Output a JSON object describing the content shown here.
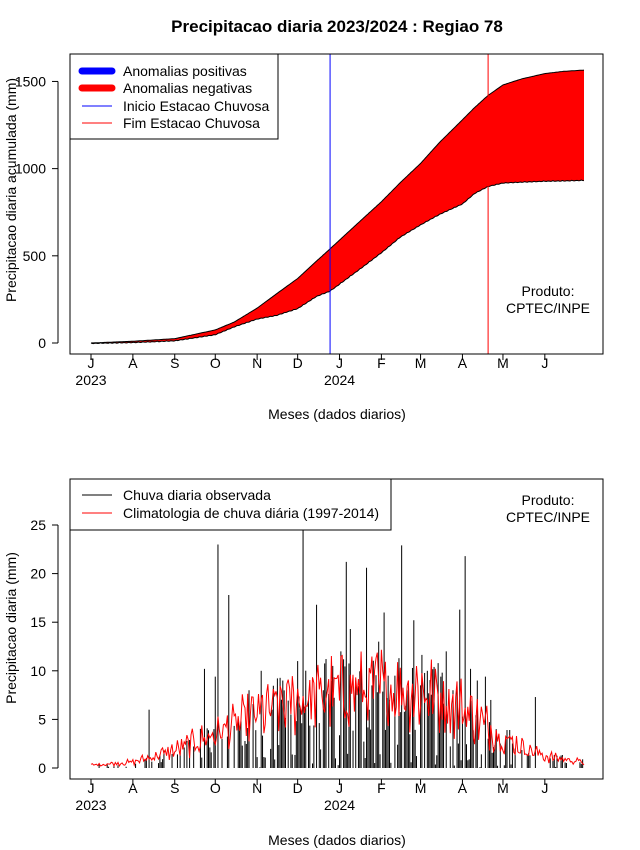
{
  "chart_data": [
    {
      "type": "area",
      "title": "Precipitacao diaria 2023/2024 : Regiao 78",
      "xlabel": "Meses (dados diarios)",
      "ylabel": "Precipitacao diaria acumulada (mm)",
      "ylim": [
        0,
        1600
      ],
      "yticks": [
        "0",
        "500",
        "1000",
        "1500"
      ],
      "month_ticks": [
        "J",
        "A",
        "S",
        "O",
        "N",
        "D",
        "J",
        "F",
        "M",
        "A",
        "M",
        "J"
      ],
      "year_labels": [
        "2023",
        "2024"
      ],
      "legend": {
        "placement": "top-left",
        "items": [
          "Anomalias positivas",
          "Anomalias negativas",
          "Inicio Estacao Chuvosa",
          "Fim Estacao Chuvosa"
        ]
      },
      "credit": [
        "Produto:",
        "CPTEC/INPE"
      ],
      "colors": {
        "positive": "#0000ff",
        "negative": "#ff0000",
        "start_line": "#0000ff",
        "end_line": "#ff0000"
      },
      "start_rainy_season": "2023-12-25",
      "end_rainy_season": "2024-04-20",
      "x": [
        "2023-07-01",
        "2023-08-01",
        "2023-09-01",
        "2023-10-01",
        "2023-10-15",
        "2023-11-01",
        "2023-11-15",
        "2023-12-01",
        "2023-12-15",
        "2023-12-25",
        "2024-01-01",
        "2024-01-15",
        "2024-02-01",
        "2024-02-15",
        "2024-03-01",
        "2024-03-15",
        "2024-04-01",
        "2024-04-10",
        "2024-04-20",
        "2024-05-01",
        "2024-05-15",
        "2024-06-01",
        "2024-06-15",
        "2024-06-30"
      ],
      "series": [
        {
          "name": "Climatologia",
          "values": [
            0,
            10,
            25,
            75,
            120,
            200,
            280,
            370,
            470,
            540,
            590,
            690,
            810,
            920,
            1030,
            1150,
            1280,
            1350,
            1420,
            1480,
            1515,
            1545,
            1558,
            1565
          ]
        },
        {
          "name": "Observada",
          "values": [
            0,
            5,
            15,
            50,
            95,
            140,
            160,
            200,
            270,
            300,
            340,
            420,
            520,
            610,
            680,
            740,
            800,
            860,
            900,
            920,
            925,
            930,
            932,
            935
          ]
        }
      ]
    },
    {
      "type": "bar",
      "xlabel": "Meses (dados diarios)",
      "ylabel": "Precipitacao diaria (mm)",
      "ylim": [
        0,
        25
      ],
      "yticks": [
        "0",
        "5",
        "10",
        "15",
        "20",
        "25"
      ],
      "month_ticks": [
        "J",
        "A",
        "S",
        "O",
        "N",
        "D",
        "J",
        "F",
        "M",
        "A",
        "M",
        "J"
      ],
      "year_labels": [
        "2023",
        "2024"
      ],
      "legend": {
        "placement": "top-left",
        "items": [
          "Chuva diaria observada",
          "Climatologia de chuva diária (1997-2014)"
        ]
      },
      "credit": [
        "Produto:",
        "CPTEC/INPE"
      ],
      "colors": {
        "observed": "#000000",
        "climatology": "#ff0000"
      },
      "peak_days": [
        {
          "date": "2023-08-13",
          "value": 6
        },
        {
          "date": "2023-09-23",
          "value": 10.2
        },
        {
          "date": "2023-09-30",
          "value": 4
        },
        {
          "date": "2023-10-06",
          "value": 3
        },
        {
          "date": "2023-10-01",
          "value": 9.4
        },
        {
          "date": "2023-10-03",
          "value": 23
        },
        {
          "date": "2023-10-11",
          "value": 17.8
        },
        {
          "date": "2023-10-18",
          "value": 5
        },
        {
          "date": "2023-10-26",
          "value": 8
        },
        {
          "date": "2023-11-04",
          "value": 10
        },
        {
          "date": "2023-11-12",
          "value": 6
        },
        {
          "date": "2023-11-20",
          "value": 9
        },
        {
          "date": "2023-11-26",
          "value": 5.5
        },
        {
          "date": "2023-12-01",
          "value": 11
        },
        {
          "date": "2023-12-05",
          "value": 24.5
        },
        {
          "date": "2023-12-09",
          "value": 7
        },
        {
          "date": "2023-12-15",
          "value": 16.8
        },
        {
          "date": "2023-12-20",
          "value": 8
        },
        {
          "date": "2023-12-27",
          "value": 10.5
        },
        {
          "date": "2024-01-02",
          "value": 12
        },
        {
          "date": "2024-01-06",
          "value": 21.2
        },
        {
          "date": "2024-01-09",
          "value": 14.3
        },
        {
          "date": "2024-01-13",
          "value": 9
        },
        {
          "date": "2024-01-17",
          "value": 11
        },
        {
          "date": "2024-01-21",
          "value": 20.6
        },
        {
          "date": "2024-01-25",
          "value": 8.5
        },
        {
          "date": "2024-01-30",
          "value": 13
        },
        {
          "date": "2024-02-03",
          "value": 16
        },
        {
          "date": "2024-02-07",
          "value": 7
        },
        {
          "date": "2024-02-11",
          "value": 9.5
        },
        {
          "date": "2024-02-16",
          "value": 22.9
        },
        {
          "date": "2024-02-20",
          "value": 8
        },
        {
          "date": "2024-02-25",
          "value": 15.2
        },
        {
          "date": "2024-03-01",
          "value": 8.5
        },
        {
          "date": "2024-03-06",
          "value": 10
        },
        {
          "date": "2024-03-11",
          "value": 10.4
        },
        {
          "date": "2024-03-16",
          "value": 9.4
        },
        {
          "date": "2024-03-20",
          "value": 12
        },
        {
          "date": "2024-03-25",
          "value": 8
        },
        {
          "date": "2024-03-30",
          "value": 16.3
        },
        {
          "date": "2024-04-03",
          "value": 21.8
        },
        {
          "date": "2024-04-07",
          "value": 10.2
        },
        {
          "date": "2024-04-12",
          "value": 9
        },
        {
          "date": "2024-04-18",
          "value": 9.4
        },
        {
          "date": "2024-04-22",
          "value": 7
        },
        {
          "date": "2024-04-26",
          "value": 4
        },
        {
          "date": "2024-05-03",
          "value": 3
        },
        {
          "date": "2024-05-10",
          "value": 2
        },
        {
          "date": "2024-05-25",
          "value": 7.3
        }
      ],
      "climatology_profile": {
        "x": [
          "2023-07-01",
          "2023-08-01",
          "2023-09-01",
          "2023-10-01",
          "2023-11-01",
          "2023-12-01",
          "2024-01-01",
          "2024-02-01",
          "2024-03-01",
          "2024-04-01",
          "2024-05-01",
          "2024-06-01",
          "2024-06-30"
        ],
        "values": [
          0.3,
          0.6,
          1.8,
          3.5,
          5.5,
          7.0,
          7.8,
          8.2,
          8.0,
          6.2,
          3.0,
          1.2,
          0.6
        ]
      }
    }
  ]
}
